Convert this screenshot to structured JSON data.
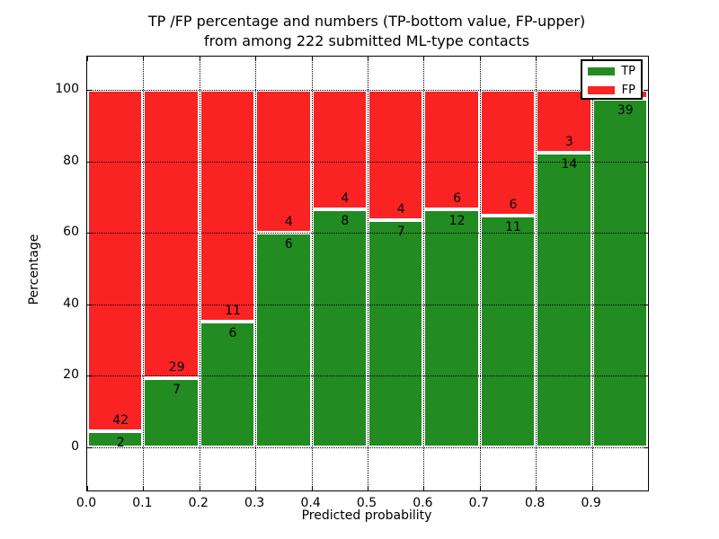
{
  "chart_data": {
    "type": "bar",
    "stacked": true,
    "title_line1": "TP /FP percentage and numbers (TP-bottom value, FP-upper)",
    "title_line2": "from among 222 submitted ML-type contacts",
    "xlabel": "Predicted probability",
    "ylabel": "Percentage",
    "total_contacts": 222,
    "xlim": [
      0.0,
      1.0
    ],
    "ylim": [
      -12,
      109
    ],
    "grid": "dotted black, both axes, drawn above bars",
    "colors": {
      "tp": "#228b22",
      "fp": "#fa2323",
      "bar_edge": "#ffffff"
    },
    "xticks": [
      {
        "v": 0.0,
        "label": "0.0"
      },
      {
        "v": 0.1,
        "label": "0.1"
      },
      {
        "v": 0.2,
        "label": "0.2"
      },
      {
        "v": 0.3,
        "label": "0.3"
      },
      {
        "v": 0.4,
        "label": "0.4"
      },
      {
        "v": 0.5,
        "label": "0.5"
      },
      {
        "v": 0.6,
        "label": "0.6"
      },
      {
        "v": 0.7,
        "label": "0.7"
      },
      {
        "v": 0.8,
        "label": "0.8"
      },
      {
        "v": 0.9,
        "label": "0.9"
      }
    ],
    "yticks": [
      {
        "v": 0,
        "label": "0"
      },
      {
        "v": 20,
        "label": "20"
      },
      {
        "v": 40,
        "label": "40"
      },
      {
        "v": 60,
        "label": "60"
      },
      {
        "v": 80,
        "label": "80"
      },
      {
        "v": 100,
        "label": "100"
      }
    ],
    "legend": {
      "position": "upper right",
      "entries": [
        {
          "label": "TP",
          "color": "#228b22"
        },
        {
          "label": "FP",
          "color": "#fa2323"
        }
      ]
    },
    "bars": [
      {
        "x0": 0.0,
        "x1": 0.1,
        "tp": 2,
        "fp": 42,
        "tp_pct": 4.55,
        "tp_label": "2",
        "fp_label": "42"
      },
      {
        "x0": 0.1,
        "x1": 0.2,
        "tp": 7,
        "fp": 29,
        "tp_pct": 19.44,
        "tp_label": "7",
        "fp_label": "29"
      },
      {
        "x0": 0.2,
        "x1": 0.3,
        "tp": 6,
        "fp": 11,
        "tp_pct": 35.29,
        "tp_label": "6",
        "fp_label": "11"
      },
      {
        "x0": 0.3,
        "x1": 0.4,
        "tp": 6,
        "fp": 4,
        "tp_pct": 60.0,
        "tp_label": "6",
        "fp_label": "4"
      },
      {
        "x0": 0.4,
        "x1": 0.5,
        "tp": 8,
        "fp": 4,
        "tp_pct": 66.67,
        "tp_label": "8",
        "fp_label": "4"
      },
      {
        "x0": 0.5,
        "x1": 0.6,
        "tp": 7,
        "fp": 4,
        "tp_pct": 63.64,
        "tp_label": "7",
        "fp_label": "4"
      },
      {
        "x0": 0.6,
        "x1": 0.7,
        "tp": 12,
        "fp": 6,
        "tp_pct": 66.67,
        "tp_label": "12",
        "fp_label": "6"
      },
      {
        "x0": 0.7,
        "x1": 0.8,
        "tp": 11,
        "fp": 6,
        "tp_pct": 64.71,
        "tp_label": "11",
        "fp_label": "6"
      },
      {
        "x0": 0.8,
        "x1": 0.9,
        "tp": 14,
        "fp": 3,
        "tp_pct": 82.35,
        "tp_label": "14",
        "fp_label": "3"
      },
      {
        "x0": 0.9,
        "x1": 1.0,
        "tp": 39,
        "fp": 1,
        "tp_pct": 97.5,
        "tp_label": "39",
        "fp_label": ""
      }
    ]
  }
}
